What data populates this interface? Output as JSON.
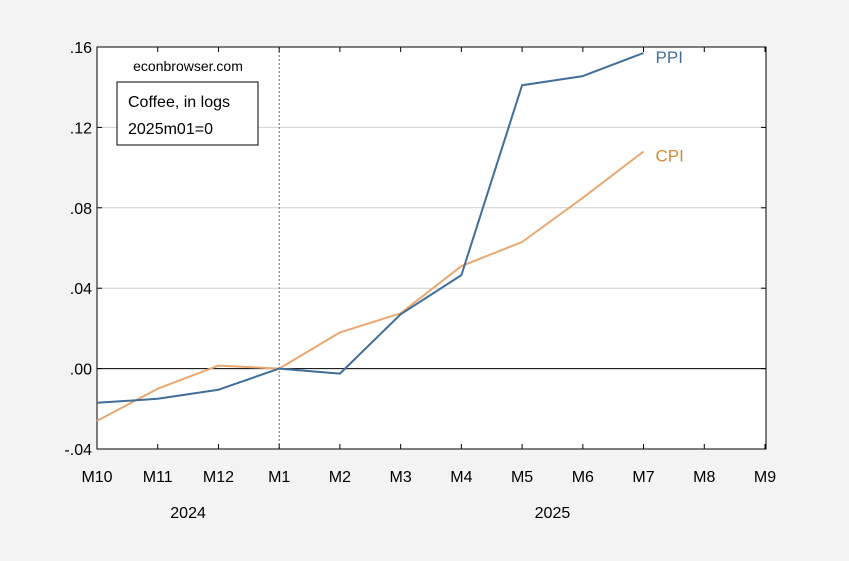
{
  "chart_data": {
    "type": "line",
    "source_label": "econbrowser.com",
    "legend_box": {
      "line1": "Coffee, in logs",
      "line2": "2025m01=0"
    },
    "x_categories": [
      "M10",
      "M11",
      "M12",
      "M1",
      "M2",
      "M3",
      "M4",
      "M5",
      "M6",
      "M7",
      "M8",
      "M9"
    ],
    "year_labels": [
      {
        "label": "2024",
        "center_index": 1.5
      },
      {
        "label": "2025",
        "center_index": 7.5
      }
    ],
    "ylim": [
      -0.04,
      0.16
    ],
    "yticks": [
      {
        "value": -0.04,
        "label": "-.04"
      },
      {
        "value": 0.0,
        "label": ".00"
      },
      {
        "value": 0.04,
        "label": ".04"
      },
      {
        "value": 0.08,
        "label": ".08"
      },
      {
        "value": 0.12,
        "label": ".12"
      },
      {
        "value": 0.16,
        "label": ".16"
      }
    ],
    "grid": true,
    "reference_line_at": "M1",
    "series": [
      {
        "name": "PPI",
        "color": "#3f6e99",
        "values": [
          -0.017,
          -0.015,
          -0.0105,
          0.0,
          -0.0025,
          0.027,
          0.0465,
          0.141,
          0.1455,
          0.157
        ]
      },
      {
        "name": "CPI",
        "color": "#e8a870",
        "label_color": "#d08a3a",
        "values": [
          -0.026,
          -0.01,
          0.0015,
          0.0,
          0.018,
          0.0275,
          0.051,
          0.063,
          0.085,
          0.108
        ]
      }
    ]
  }
}
